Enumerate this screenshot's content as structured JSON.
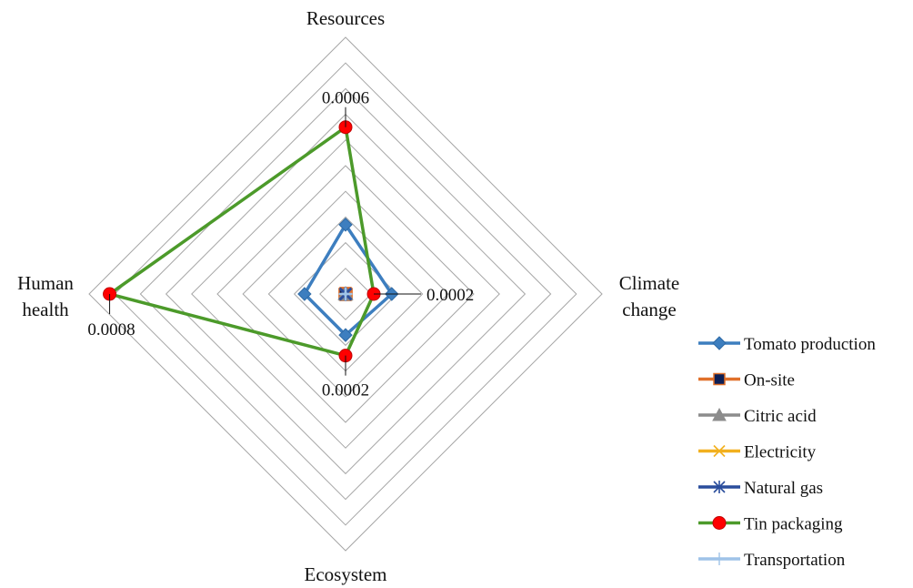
{
  "chart_data": {
    "type": "radar",
    "title": "",
    "axes": [
      "Resources",
      "Climate change",
      "Ecosystem",
      "Human health"
    ],
    "axis_label_lines": [
      [
        "Resources"
      ],
      [
        "Climate",
        "change"
      ],
      [
        "Ecosystem"
      ],
      [
        "Human",
        "health"
      ]
    ],
    "rings": 10,
    "grid": true,
    "legend_position": "bottom-right",
    "series": [
      {
        "name": "Tomato production",
        "color": "#3d7ebf",
        "marker": "diamond",
        "values": [
          0.27,
          0.18,
          0.16,
          0.16
        ]
      },
      {
        "name": "On-site",
        "color": "#e0702a",
        "marker": "square",
        "marker_fill": "#0d1f55",
        "values": [
          0.004,
          0.004,
          0.004,
          0.004
        ]
      },
      {
        "name": "Citric acid",
        "color": "#8c8c8c",
        "marker": "triangle",
        "values": [
          0.003,
          0.003,
          0.003,
          0.003
        ]
      },
      {
        "name": "Electricity",
        "color": "#f2b01e",
        "marker": "x",
        "values": [
          0.002,
          0.002,
          0.002,
          0.002
        ]
      },
      {
        "name": "Natural gas",
        "color": "#2a4d9c",
        "marker": "asterisk",
        "values": [
          0.003,
          0.003,
          0.003,
          0.003
        ]
      },
      {
        "name": "Tin packaging",
        "color": "#4c9a2a",
        "marker": "circle",
        "marker_fill": "#ff0000",
        "values": [
          0.65,
          0.11,
          0.24,
          0.92
        ]
      },
      {
        "name": "Transportation",
        "color": "#9fc3e8",
        "marker": "plus",
        "values": [
          0.002,
          0.002,
          0.002,
          0.002
        ]
      }
    ],
    "data_labels": [
      {
        "axis": 0,
        "text": "0.0006"
      },
      {
        "axis": 1,
        "text": "0.0002"
      },
      {
        "axis": 2,
        "text": "0.0002"
      },
      {
        "axis": 3,
        "text": "0.0008"
      }
    ]
  }
}
